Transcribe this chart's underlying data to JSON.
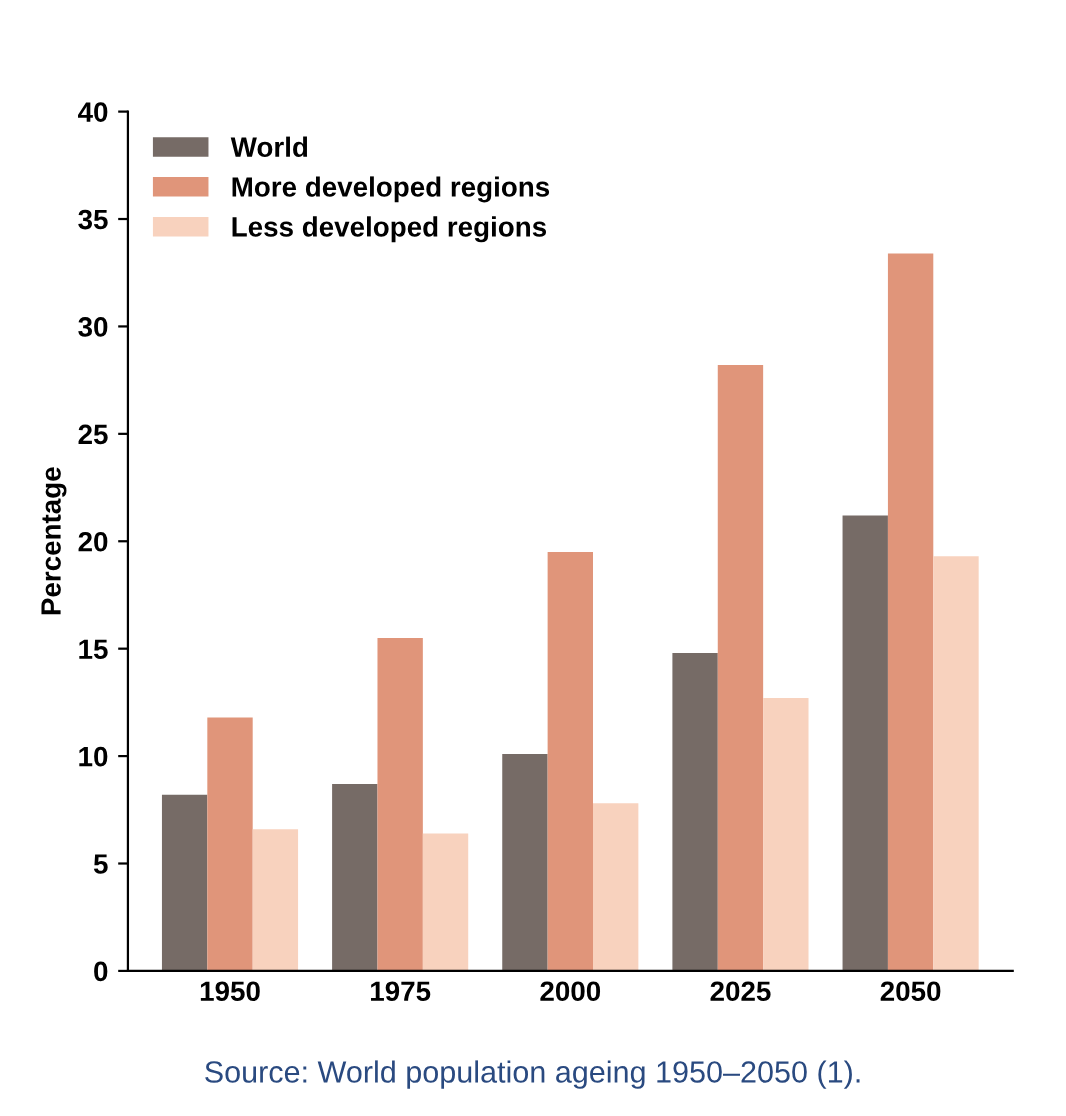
{
  "chart_data": {
    "type": "bar",
    "ylabel": "Percentage",
    "categories": [
      "1950",
      "1975",
      "2000",
      "2025",
      "2050"
    ],
    "series": [
      {
        "name": "World",
        "color": "#766b66",
        "values": [
          8.2,
          8.7,
          10.1,
          14.8,
          21.2
        ]
      },
      {
        "name": "More developed regions",
        "color": "#e0957a",
        "values": [
          11.8,
          15.5,
          19.5,
          28.2,
          33.4
        ]
      },
      {
        "name": "Less developed regions",
        "color": "#f8d2be",
        "values": [
          6.6,
          6.4,
          7.8,
          12.7,
          19.3
        ]
      }
    ],
    "ylim": [
      0,
      40
    ],
    "yticks": [
      0,
      5,
      10,
      15,
      20,
      25,
      30,
      35,
      40
    ],
    "grid": false,
    "legend": "top left",
    "annotations": [
      "Source: World population ageing 1950–2050 (1)."
    ]
  }
}
